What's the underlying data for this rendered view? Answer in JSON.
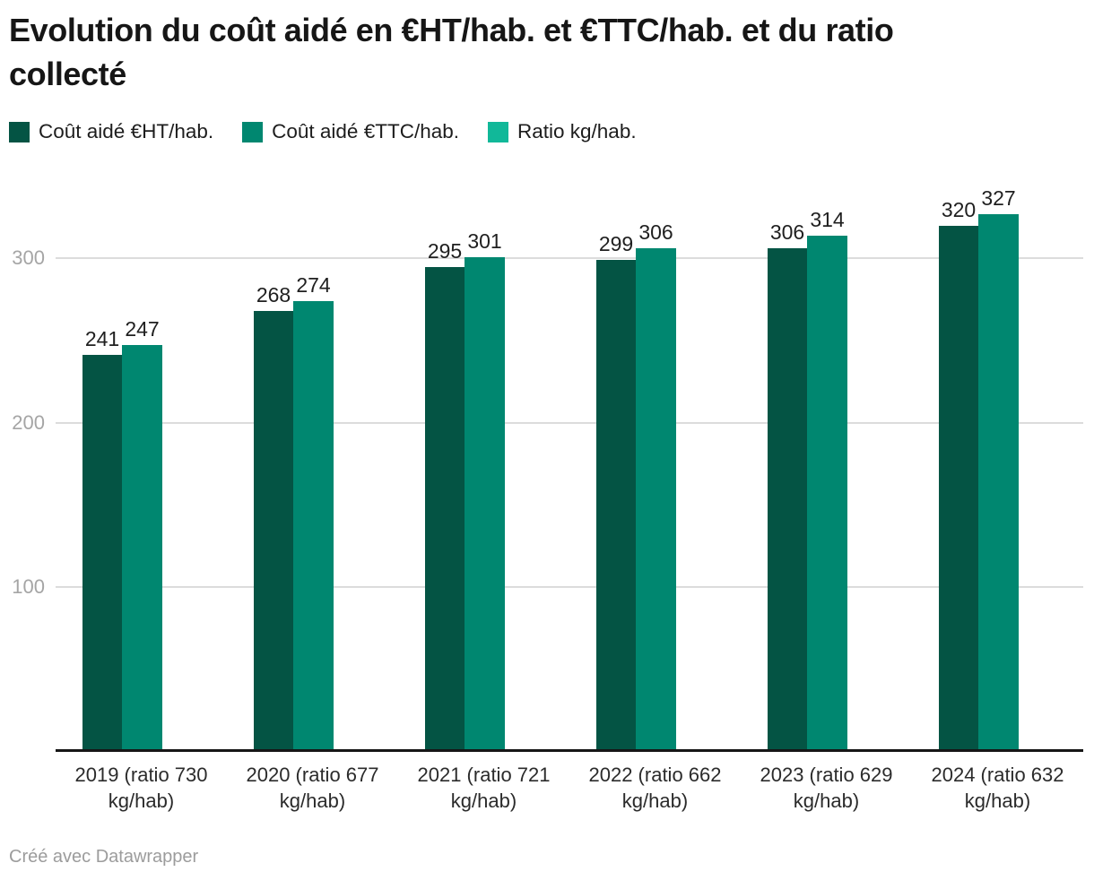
{
  "header": {
    "title_lines": [
      "Evolution du coût aidé en €HT/hab. et €TTC/hab. et du ratio",
      "collecté"
    ]
  },
  "legend": {
    "items": [
      {
        "label": "Coût aidé €HT/hab.",
        "color": "#045444"
      },
      {
        "label": "Coût aidé €TTC/hab.",
        "color": "#008770"
      },
      {
        "label": "Ratio kg/hab.",
        "color": "#11b899"
      }
    ]
  },
  "chart_data": {
    "type": "bar",
    "title": "Evolution du coût aidé en €HT/hab. et €TTC/hab. et du ratio collecté",
    "categories": [
      "2019 (ratio 730 kg/hab)",
      "2020 (ratio 677 kg/hab)",
      "2021 (ratio 721 kg/hab)",
      "2022 (ratio 662 kg/hab)",
      "2023 (ratio 629 kg/hab)",
      "2024 (ratio 632 kg/hab)"
    ],
    "series": [
      {
        "name": "Coût aidé €HT/hab.",
        "color": "#045444",
        "values": [
          241,
          268,
          295,
          299,
          306,
          320
        ]
      },
      {
        "name": "Coût aidé €TTC/hab.",
        "color": "#008770",
        "values": [
          247,
          274,
          301,
          306,
          314,
          327
        ]
      }
    ],
    "ratio_series": {
      "name": "Ratio kg/hab.",
      "color": "#11b899",
      "values": [
        730,
        677,
        721,
        662,
        629,
        632
      ]
    },
    "yticks": [
      100,
      200,
      300
    ],
    "ylim": [
      0,
      360
    ],
    "grid": true,
    "legend_position": "top",
    "value_labels": true
  },
  "footer": {
    "credit": "Créé avec Datawrapper"
  }
}
